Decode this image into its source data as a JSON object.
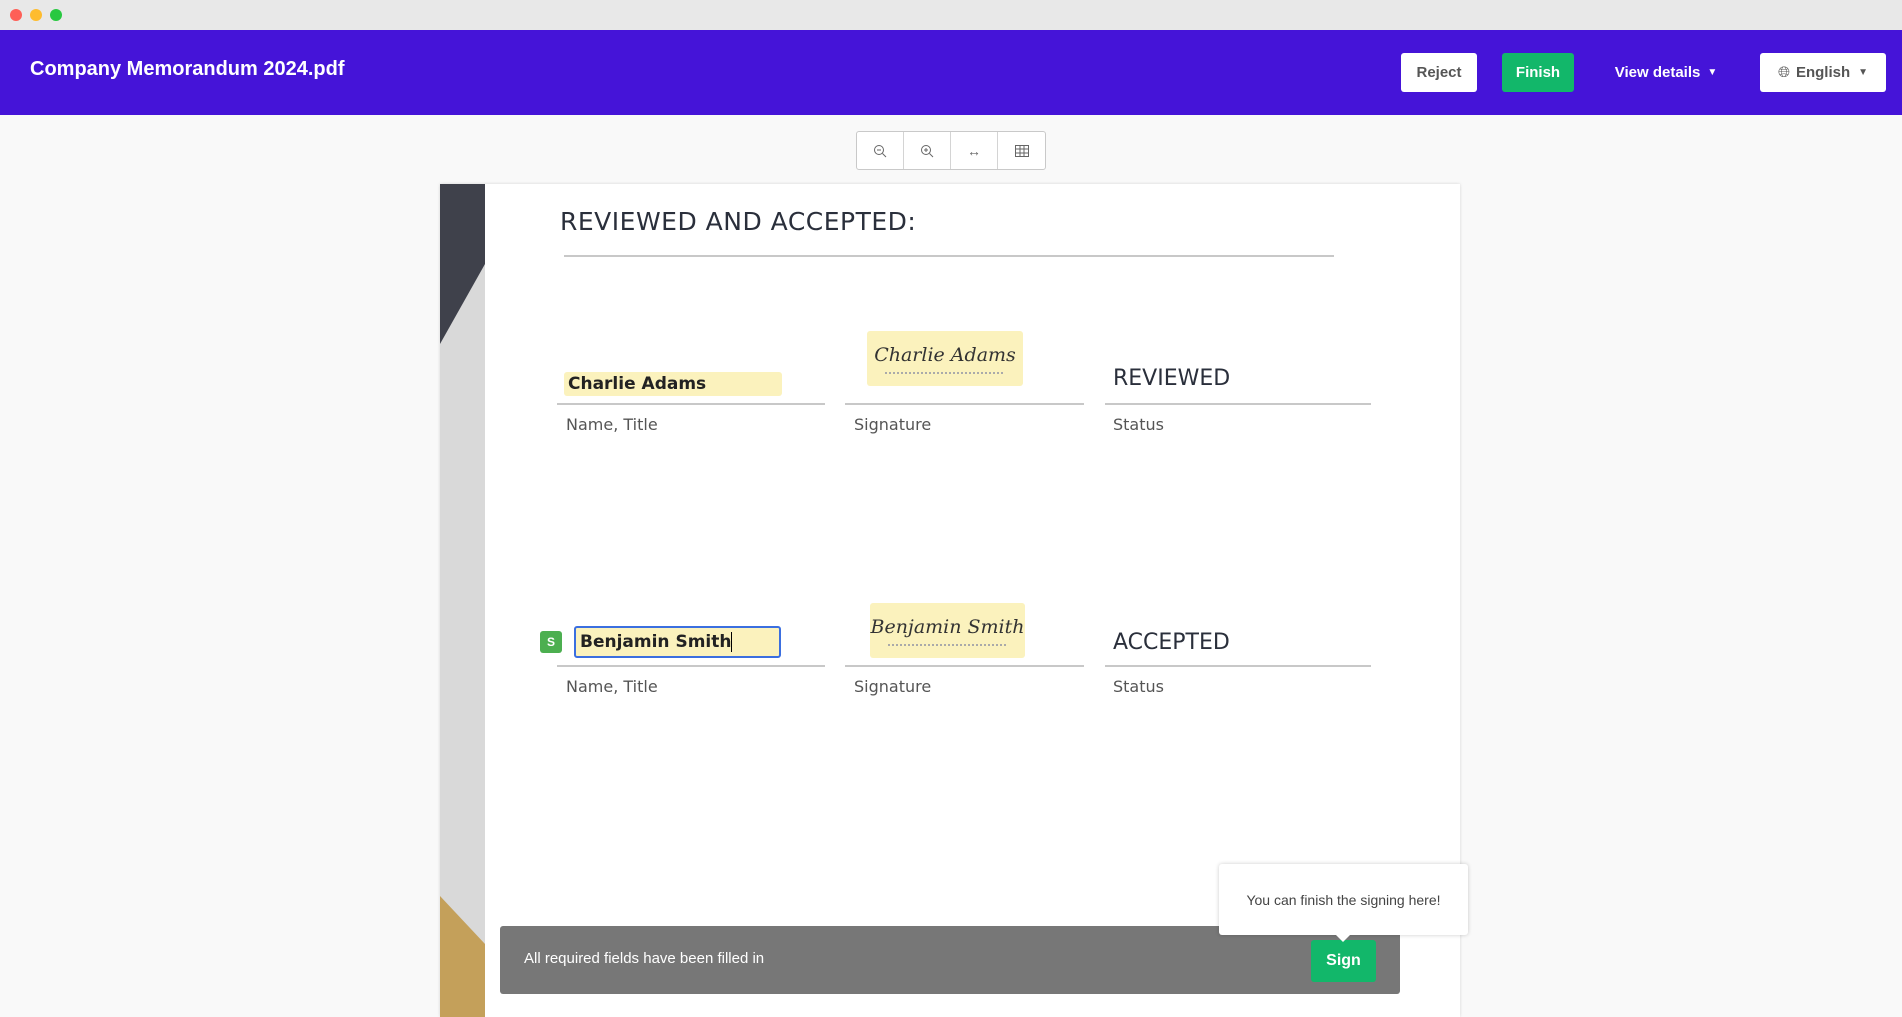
{
  "window": {
    "title": "Company Memorandum 2024.pdf"
  },
  "header": {
    "reject_label": "Reject",
    "finish_label": "Finish",
    "view_details_label": "View details",
    "language_label": "English"
  },
  "toolbar": {
    "zoom_out": "zoom-out-icon",
    "zoom_in": "zoom-in-icon",
    "fit_width": "fit-width-icon",
    "grid": "grid-icon"
  },
  "document": {
    "heading": "REVIEWED AND ACCEPTED:",
    "rows": [
      {
        "name": "Charlie Adams",
        "signature": "Charlie Adams",
        "status": "REVIEWED",
        "name_label": "Name, Title",
        "signature_label": "Signature",
        "status_label": "Status"
      },
      {
        "badge": "S",
        "name": "Benjamin Smith",
        "signature": "Benjamin Smith",
        "status": "ACCEPTED",
        "name_label": "Name, Title",
        "signature_label": "Signature",
        "status_label": "Status"
      }
    ]
  },
  "footer": {
    "message": "All required fields have been filled in",
    "sign_label": "Sign",
    "tooltip": "You can finish the signing here!"
  },
  "colors": {
    "header": "#4514d8",
    "finish": "#12b76a",
    "field": "#fbf2bd",
    "bar": "#777777"
  }
}
